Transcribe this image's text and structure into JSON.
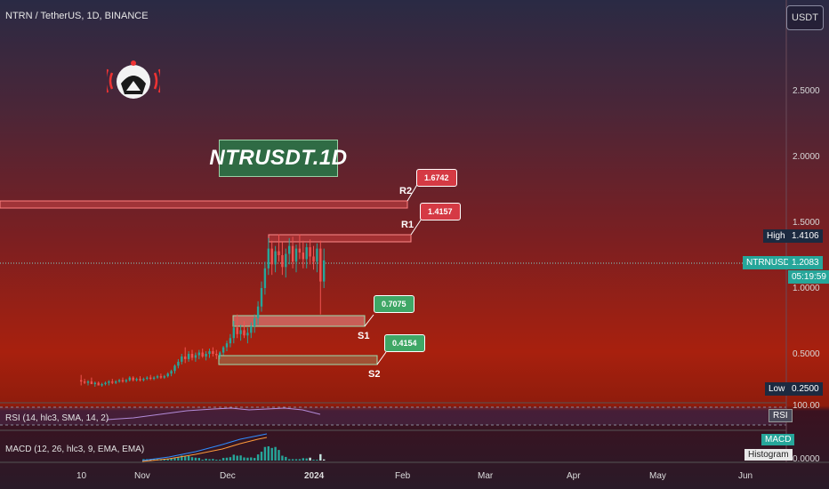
{
  "header": {
    "title": "NTRN / TetherUS, 1D, BINANCE",
    "currency_button": "USDT"
  },
  "ticker_label": "NTRUSDT.1D",
  "levels": {
    "r2": {
      "name": "R2",
      "value": "1.6742"
    },
    "r1": {
      "name": "R1",
      "value": "1.4157"
    },
    "s1": {
      "name": "S1",
      "value": "0.7075"
    },
    "s2": {
      "name": "S2",
      "value": "0.4154"
    }
  },
  "price_axis": {
    "ticks": [
      "2.5000",
      "2.0000",
      "1.5000",
      "1.0000",
      "0.5000"
    ],
    "high_label": "High",
    "high_value": "1.4106",
    "low_label": "Low",
    "low_value": "0.2500",
    "symbol": "NTRNUSDT",
    "last_price": "1.2083",
    "countdown": "05:19:59"
  },
  "time_axis": [
    "10",
    "Nov",
    "Dec",
    "2024",
    "Feb",
    "Mar",
    "Apr",
    "May",
    "Jun"
  ],
  "rsi": {
    "label": "RSI (14, hlc3, SMA, 14, 2)",
    "tick": "100.00",
    "button": "RSI"
  },
  "macd": {
    "label": "MACD (12, 26, hlc3, 9, EMA, EMA)",
    "tick": "0.0000",
    "macd_button": "MACD",
    "hist_button": "Histogram"
  },
  "colors": {
    "up": "#26a69a",
    "down": "#ef5350",
    "accent_red": "#d53a44",
    "accent_green": "#3fa766"
  },
  "chart_data": {
    "type": "candlestick",
    "title": "NTRN / TetherUS, 1D, BINANCE",
    "y_ticks": [
      0.5,
      1.0,
      1.5,
      2.0,
      2.5
    ],
    "ylim": [
      0.15,
      3.0
    ],
    "x_labels": [
      "10",
      "Nov",
      "Dec",
      "2024",
      "Feb",
      "Mar",
      "Apr",
      "May",
      "Jun"
    ],
    "last_price": 1.2083,
    "high": 1.4106,
    "low": 0.25,
    "levels": [
      {
        "name": "R2",
        "value": 1.6742
      },
      {
        "name": "R1",
        "value": 1.4157
      },
      {
        "name": "S1",
        "value": 0.7075
      },
      {
        "name": "S2",
        "value": 0.4154
      }
    ],
    "candles": [
      [
        0.3,
        0.34,
        0.26,
        0.29
      ],
      [
        0.29,
        0.31,
        0.27,
        0.28
      ],
      [
        0.28,
        0.3,
        0.26,
        0.29
      ],
      [
        0.29,
        0.32,
        0.27,
        0.27
      ],
      [
        0.27,
        0.29,
        0.25,
        0.28
      ],
      [
        0.28,
        0.29,
        0.26,
        0.26
      ],
      [
        0.26,
        0.28,
        0.25,
        0.27
      ],
      [
        0.27,
        0.29,
        0.26,
        0.28
      ],
      [
        0.28,
        0.3,
        0.26,
        0.29
      ],
      [
        0.29,
        0.31,
        0.27,
        0.28
      ],
      [
        0.28,
        0.3,
        0.27,
        0.29
      ],
      [
        0.29,
        0.31,
        0.28,
        0.3
      ],
      [
        0.3,
        0.32,
        0.28,
        0.29
      ],
      [
        0.29,
        0.31,
        0.28,
        0.3
      ],
      [
        0.3,
        0.33,
        0.29,
        0.32
      ],
      [
        0.32,
        0.33,
        0.29,
        0.3
      ],
      [
        0.3,
        0.32,
        0.29,
        0.31
      ],
      [
        0.31,
        0.33,
        0.29,
        0.3
      ],
      [
        0.3,
        0.32,
        0.29,
        0.31
      ],
      [
        0.31,
        0.33,
        0.3,
        0.32
      ],
      [
        0.32,
        0.34,
        0.3,
        0.31
      ],
      [
        0.31,
        0.33,
        0.3,
        0.32
      ],
      [
        0.32,
        0.34,
        0.31,
        0.33
      ],
      [
        0.33,
        0.35,
        0.31,
        0.32
      ],
      [
        0.32,
        0.34,
        0.31,
        0.33
      ],
      [
        0.33,
        0.36,
        0.32,
        0.35
      ],
      [
        0.35,
        0.38,
        0.33,
        0.37
      ],
      [
        0.37,
        0.42,
        0.35,
        0.41
      ],
      [
        0.41,
        0.46,
        0.39,
        0.44
      ],
      [
        0.44,
        0.5,
        0.42,
        0.48
      ],
      [
        0.48,
        0.55,
        0.43,
        0.46
      ],
      [
        0.46,
        0.52,
        0.44,
        0.5
      ],
      [
        0.5,
        0.53,
        0.45,
        0.47
      ],
      [
        0.47,
        0.51,
        0.44,
        0.49
      ],
      [
        0.49,
        0.53,
        0.46,
        0.51
      ],
      [
        0.51,
        0.54,
        0.47,
        0.48
      ],
      [
        0.48,
        0.52,
        0.45,
        0.5
      ],
      [
        0.5,
        0.54,
        0.47,
        0.52
      ],
      [
        0.52,
        0.55,
        0.48,
        0.5
      ],
      [
        0.5,
        0.53,
        0.46,
        0.49
      ],
      [
        0.49,
        0.52,
        0.46,
        0.51
      ],
      [
        0.51,
        0.56,
        0.49,
        0.55
      ],
      [
        0.55,
        0.6,
        0.52,
        0.58
      ],
      [
        0.58,
        0.65,
        0.55,
        0.62
      ],
      [
        0.62,
        0.75,
        0.58,
        0.7
      ],
      [
        0.7,
        0.8,
        0.62,
        0.65
      ],
      [
        0.65,
        0.72,
        0.6,
        0.68
      ],
      [
        0.68,
        0.75,
        0.62,
        0.64
      ],
      [
        0.64,
        0.7,
        0.58,
        0.66
      ],
      [
        0.66,
        0.74,
        0.62,
        0.71
      ],
      [
        0.71,
        0.8,
        0.66,
        0.77
      ],
      [
        0.77,
        0.9,
        0.72,
        0.86
      ],
      [
        0.86,
        1.05,
        0.82,
        1.0
      ],
      [
        1.0,
        1.2,
        0.95,
        1.15
      ],
      [
        1.15,
        1.38,
        1.1,
        1.3
      ],
      [
        1.3,
        1.36,
        1.1,
        1.18
      ],
      [
        1.18,
        1.32,
        1.12,
        1.28
      ],
      [
        1.28,
        1.41,
        1.2,
        1.25
      ],
      [
        1.25,
        1.35,
        1.1,
        1.16
      ],
      [
        1.16,
        1.3,
        1.08,
        1.26
      ],
      [
        1.26,
        1.38,
        1.18,
        1.32
      ],
      [
        1.32,
        1.39,
        1.15,
        1.2
      ],
      [
        1.2,
        1.33,
        1.12,
        1.3
      ],
      [
        1.3,
        1.41,
        1.22,
        1.27
      ],
      [
        1.27,
        1.36,
        1.15,
        1.22
      ],
      [
        1.22,
        1.34,
        1.15,
        1.31
      ],
      [
        1.31,
        1.37,
        1.18,
        1.24
      ],
      [
        1.24,
        1.32,
        1.14,
        1.2
      ],
      [
        1.2,
        1.34,
        1.12,
        1.3
      ],
      [
        1.3,
        1.36,
        0.8,
        1.05
      ],
      [
        1.05,
        1.3,
        1.0,
        1.21
      ]
    ]
  }
}
